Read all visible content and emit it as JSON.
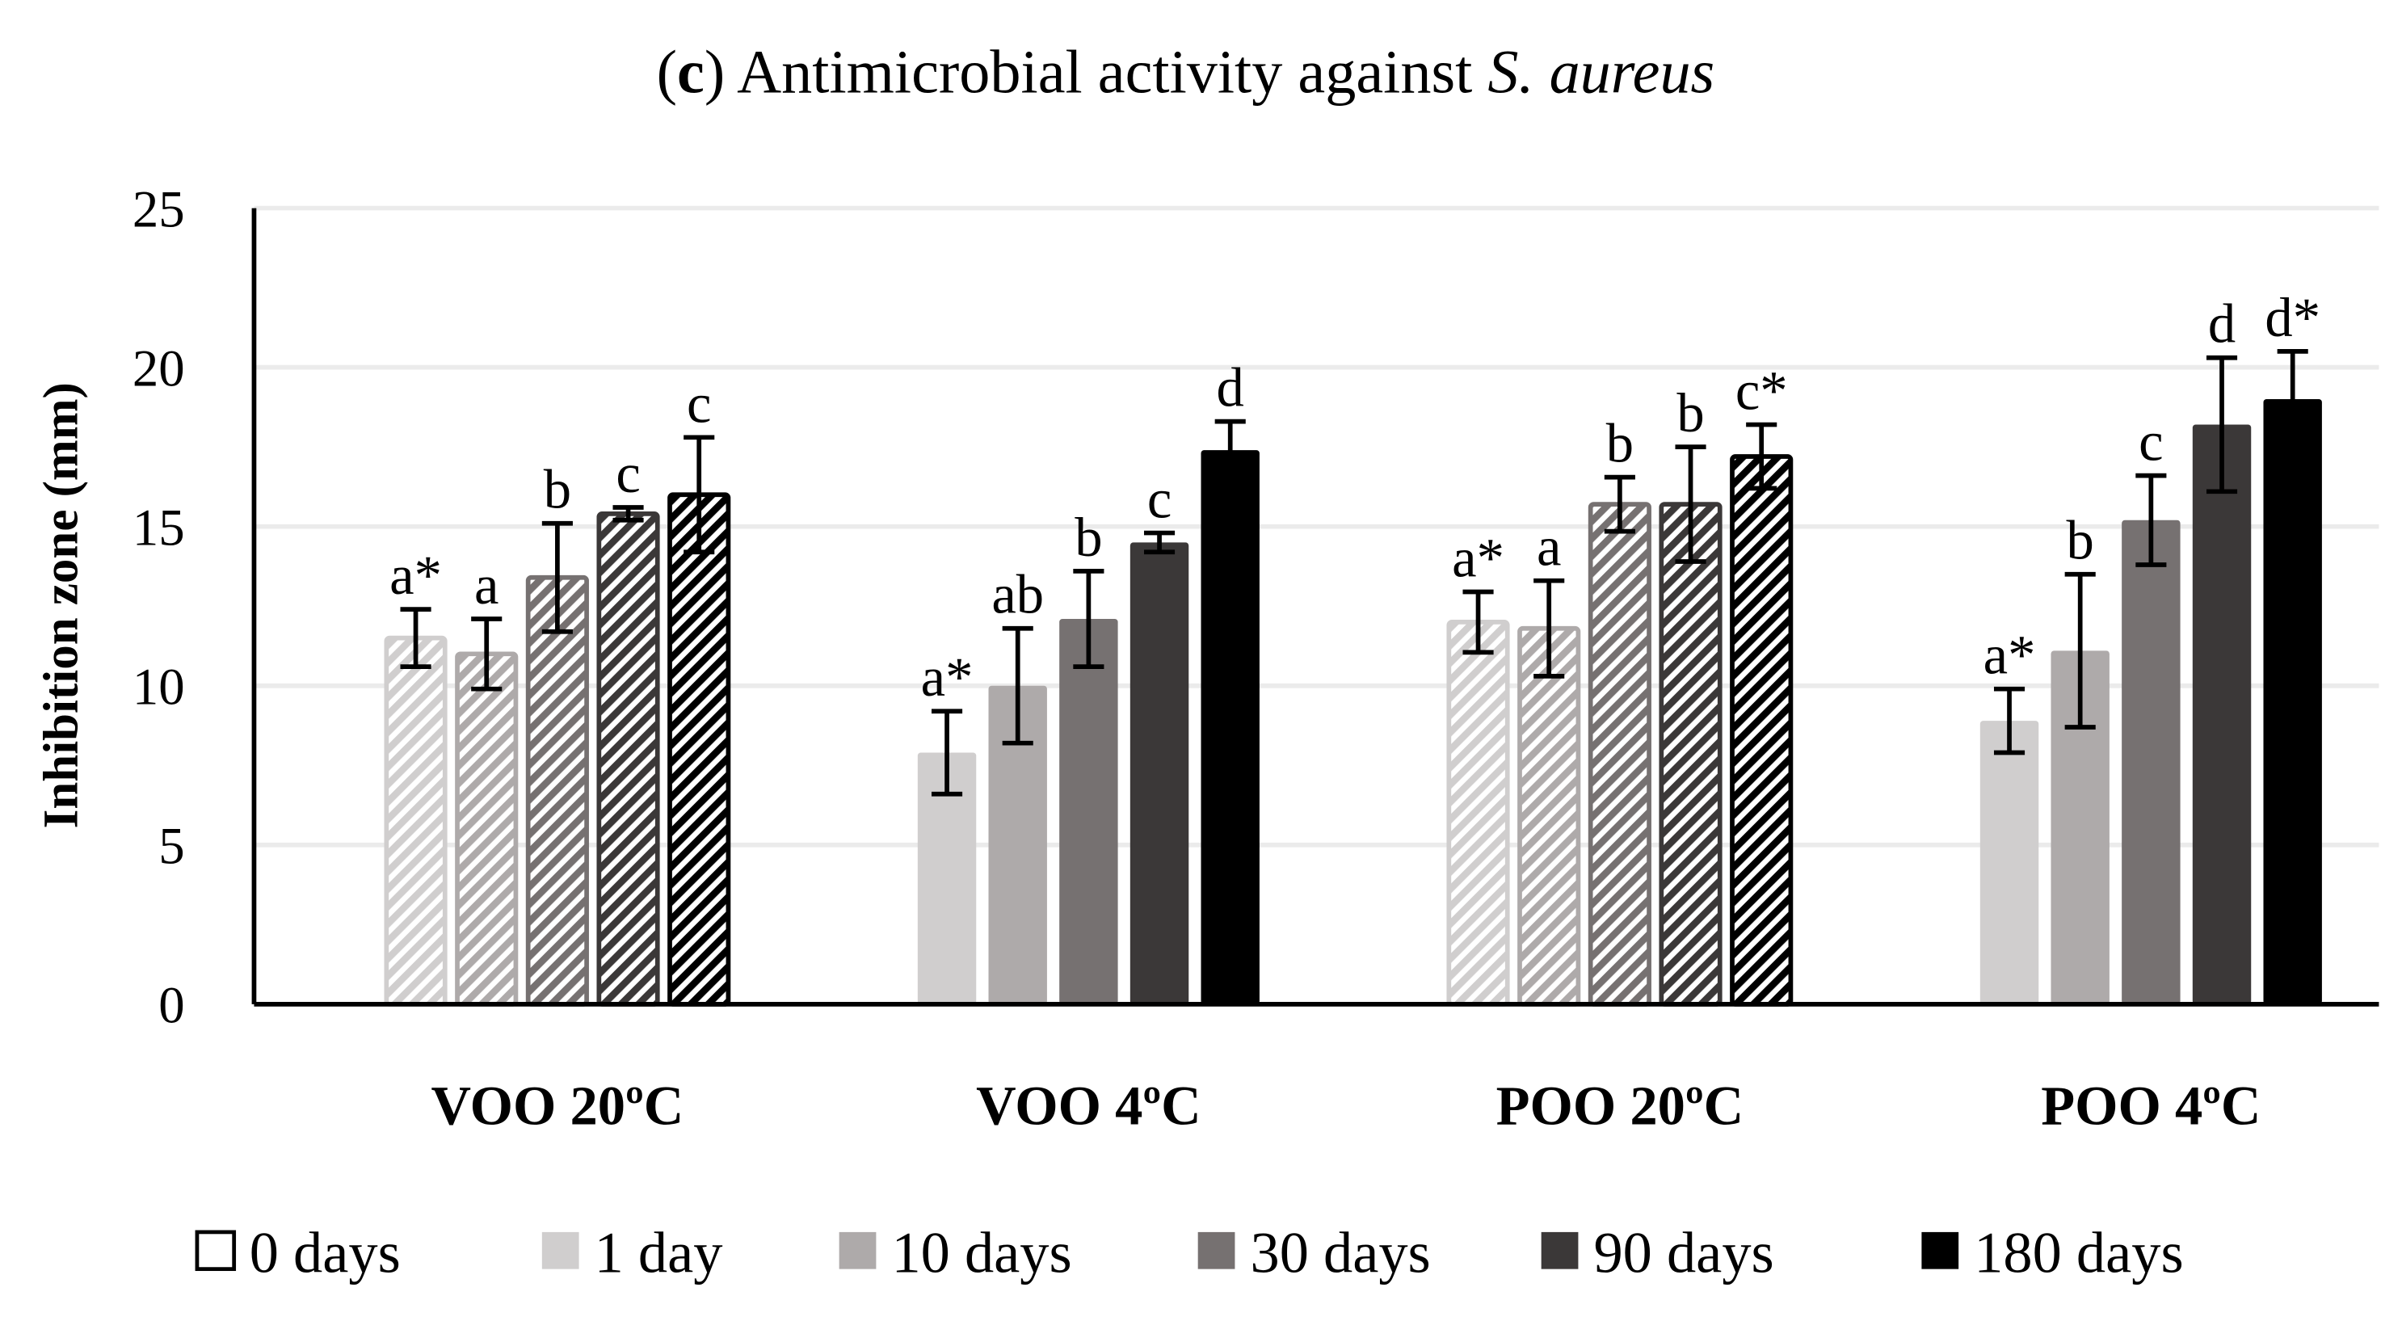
{
  "chart_data": {
    "type": "bar",
    "title_prefix": "(",
    "title_letter": "c",
    "title_main": ") Antimicrobial activity against ",
    "title_italic": "S. aureus",
    "ylabel": "Inhibition zone (mm)",
    "xlabel": "",
    "ylim": [
      0,
      25
    ],
    "yticks": [
      "0",
      "5",
      "10",
      "15",
      "20",
      "25"
    ],
    "grid": true,
    "legend_position": "bottom",
    "categories": [
      "VOO 20ºC",
      "VOO 4ºC",
      "POO 20ºC",
      "POO 4ºC"
    ],
    "hatched_categories": [
      true,
      false,
      true,
      false
    ],
    "series": [
      {
        "name": "0 days",
        "color": "#ffffff",
        "values": [
          0,
          0,
          0,
          0
        ],
        "errors": [
          0,
          0,
          0,
          0
        ],
        "labels": [
          "",
          "",
          "",
          ""
        ]
      },
      {
        "name": "1 day",
        "color": "#d0cece",
        "values": [
          11.5,
          7.9,
          12.0,
          8.9
        ],
        "errors": [
          0.9,
          1.3,
          0.95,
          1.0
        ],
        "labels": [
          "a*",
          "a*",
          "a*",
          "a*"
        ]
      },
      {
        "name": "10 days",
        "color": "#aeaaaa",
        "values": [
          11.0,
          10.0,
          11.8,
          11.1
        ],
        "errors": [
          1.1,
          1.8,
          1.5,
          2.4
        ],
        "labels": [
          "a",
          "ab",
          "a",
          "b"
        ]
      },
      {
        "name": "30 days",
        "color": "#767171",
        "values": [
          13.4,
          12.1,
          15.7,
          15.2
        ],
        "errors": [
          1.7,
          1.5,
          0.85,
          1.4
        ],
        "labels": [
          "b",
          "b",
          "b",
          "c"
        ]
      },
      {
        "name": "90 days",
        "color": "#3b3838",
        "values": [
          15.4,
          14.5,
          15.7,
          18.2
        ],
        "errors": [
          0.2,
          0.3,
          1.8,
          2.1
        ],
        "labels": [
          "c",
          "c",
          "b",
          "d"
        ]
      },
      {
        "name": "180 days",
        "color": "#000000",
        "values": [
          16.0,
          17.4,
          17.2,
          19.0
        ],
        "errors": [
          1.8,
          0.9,
          1.0,
          1.5
        ],
        "labels": [
          "c",
          "d",
          "c*",
          "d*"
        ]
      }
    ]
  }
}
